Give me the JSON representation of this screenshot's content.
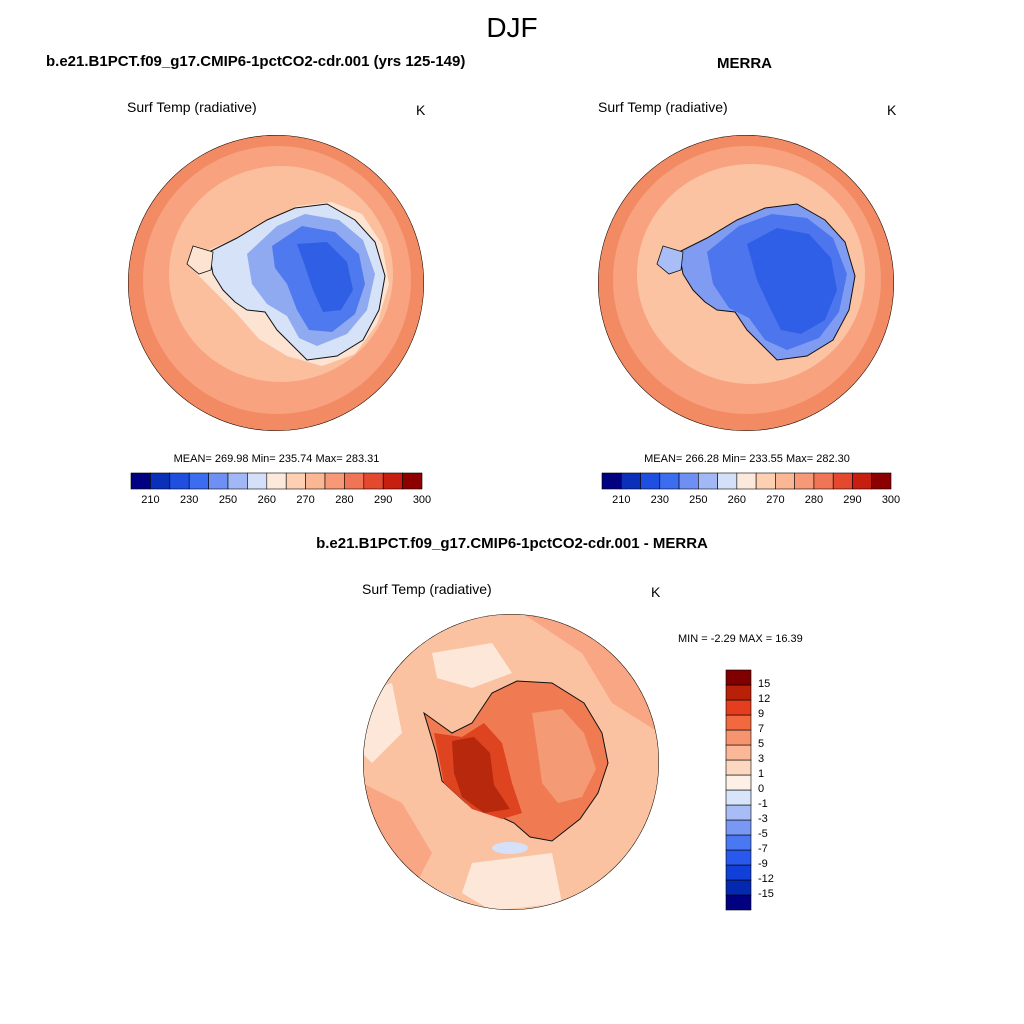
{
  "figure": {
    "title": "DJF"
  },
  "panels": [
    {
      "title": "b.e21.B1PCT.f09_g17.CMIP6-1pctCO2-cdr.001 (yrs 125-149)",
      "field_label": "Surf Temp (radiative)",
      "units": "K",
      "stats": "MEAN= 269.98  Min= 235.74  Max= 283.31",
      "mean": 269.98,
      "min": 235.74,
      "max": 283.31
    },
    {
      "title": "MERRA",
      "field_label": "Surf Temp (radiative)",
      "units": "K",
      "stats": "MEAN= 266.28  Min= 233.55  Max= 282.30",
      "mean": 266.28,
      "min": 233.55,
      "max": 282.3
    },
    {
      "title": "b.e21.B1PCT.f09_g17.CMIP6-1pctCO2-cdr.001 - MERRA",
      "field_label": "Surf Temp (radiative)",
      "units": "K",
      "stats": "MIN =  -2.29 MAX =  16.39",
      "min": -2.29,
      "max": 16.39
    }
  ],
  "colorbar_abs": {
    "colors": [
      "#000080",
      "#0a2fb8",
      "#1e4fe0",
      "#3c6cf0",
      "#6e90f4",
      "#a2b8f6",
      "#d4e0f8",
      "#fde9dc",
      "#fdd0b4",
      "#fbb694",
      "#f79876",
      "#f07556",
      "#e4482e",
      "#c81e10",
      "#8c0000"
    ],
    "tick_labels": [
      "210",
      "230",
      "250",
      "260",
      "270",
      "280",
      "290",
      "300"
    ]
  },
  "colorbar_diff": {
    "colors": [
      "#000080",
      "#0528b0",
      "#1040d8",
      "#2858ec",
      "#4a78f2",
      "#7898f4",
      "#a8bdf6",
      "#d8e4f9",
      "#fdf0e6",
      "#fdd8c0",
      "#fbb898",
      "#f79470",
      "#f2683f",
      "#e43e1e",
      "#b82008",
      "#800000"
    ],
    "tick_labels": [
      "15",
      "12",
      "9",
      "7",
      "5",
      "3",
      "1",
      "0",
      "-1",
      "-3",
      "-5",
      "-7",
      "-9",
      "-12",
      "-15"
    ]
  }
}
